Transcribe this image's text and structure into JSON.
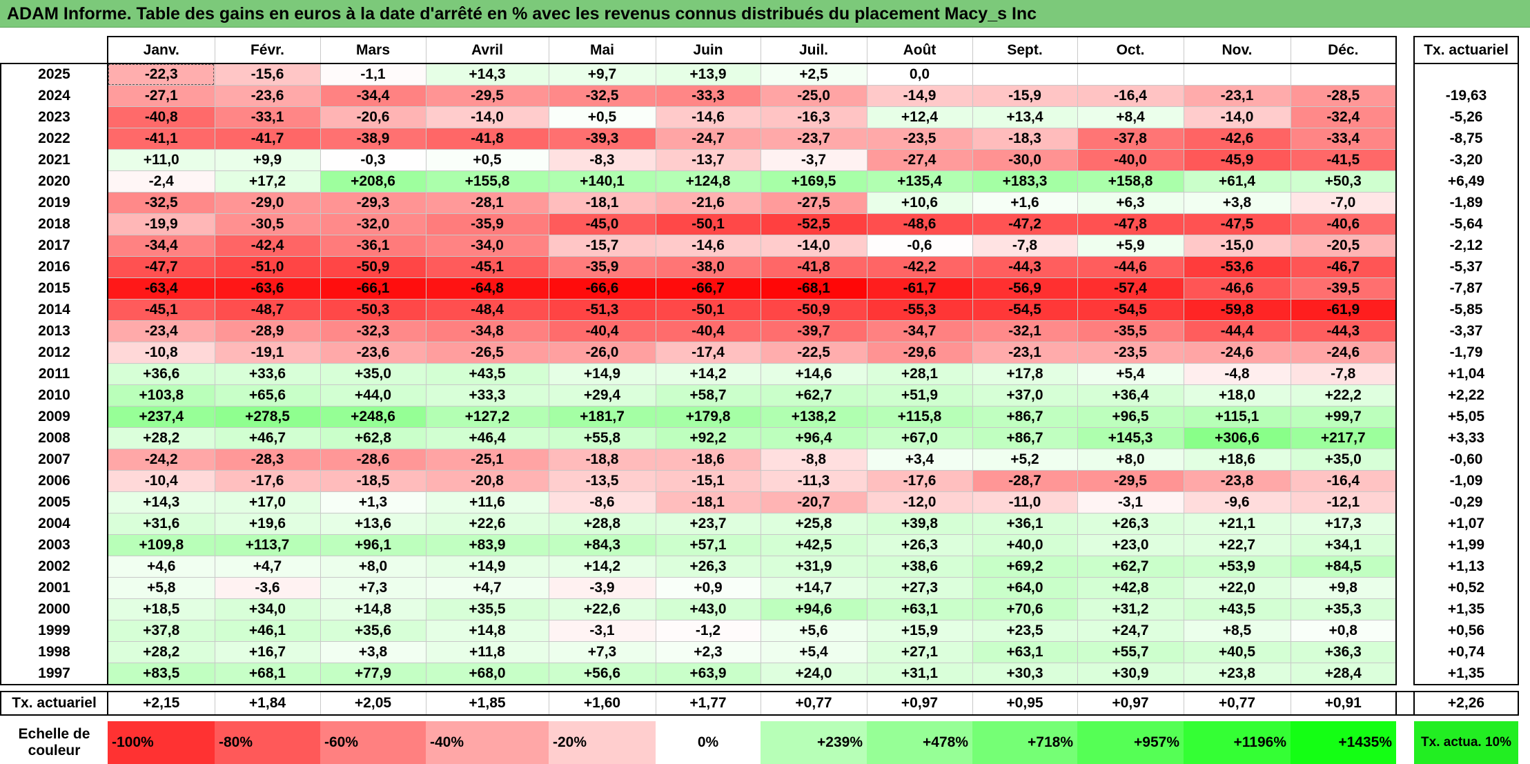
{
  "title": "ADAM Informe. Table des gains en euros à la date d'arrêté en % avec les revenus connus distribués du placement Macy_s Inc",
  "months": [
    "Janv.",
    "Févr.",
    "Mars",
    "Avril",
    "Mai",
    "Juin",
    "Juil.",
    "Août",
    "Sept.",
    "Oct.",
    "Nov.",
    "Déc."
  ],
  "annual_header": "Tx. actuariel",
  "rows": [
    {
      "year": "2025",
      "cells": [
        "-22,3",
        "-15,6",
        "-1,1",
        "+14,3",
        "+9,7",
        "+13,9",
        "+2,5",
        "0,0",
        "",
        "",
        "",
        ""
      ],
      "annual": ""
    },
    {
      "year": "2024",
      "cells": [
        "-27,1",
        "-23,6",
        "-34,4",
        "-29,5",
        "-32,5",
        "-33,3",
        "-25,0",
        "-14,9",
        "-15,9",
        "-16,4",
        "-23,1",
        "-28,5"
      ],
      "annual": "-19,63"
    },
    {
      "year": "2023",
      "cells": [
        "-40,8",
        "-33,1",
        "-20,6",
        "-14,0",
        "+0,5",
        "-14,6",
        "-16,3",
        "+12,4",
        "+13,4",
        "+8,4",
        "-14,0",
        "-32,4"
      ],
      "annual": "-5,26"
    },
    {
      "year": "2022",
      "cells": [
        "-41,1",
        "-41,7",
        "-38,9",
        "-41,8",
        "-39,3",
        "-24,7",
        "-23,7",
        "-23,5",
        "-18,3",
        "-37,8",
        "-42,6",
        "-33,4"
      ],
      "annual": "-8,75"
    },
    {
      "year": "2021",
      "cells": [
        "+11,0",
        "+9,9",
        "-0,3",
        "+0,5",
        "-8,3",
        "-13,7",
        "-3,7",
        "-27,4",
        "-30,0",
        "-40,0",
        "-45,9",
        "-41,5"
      ],
      "annual": "-3,20"
    },
    {
      "year": "2020",
      "cells": [
        "-2,4",
        "+17,2",
        "+208,6",
        "+155,8",
        "+140,1",
        "+124,8",
        "+169,5",
        "+135,4",
        "+183,3",
        "+158,8",
        "+61,4",
        "+50,3"
      ],
      "annual": "+6,49"
    },
    {
      "year": "2019",
      "cells": [
        "-32,5",
        "-29,0",
        "-29,3",
        "-28,1",
        "-18,1",
        "-21,6",
        "-27,5",
        "+10,6",
        "+1,6",
        "+6,3",
        "+3,8",
        "-7,0"
      ],
      "annual": "-1,89"
    },
    {
      "year": "2018",
      "cells": [
        "-19,9",
        "-30,5",
        "-32,0",
        "-35,9",
        "-45,0",
        "-50,1",
        "-52,5",
        "-48,6",
        "-47,2",
        "-47,8",
        "-47,5",
        "-40,6"
      ],
      "annual": "-5,64"
    },
    {
      "year": "2017",
      "cells": [
        "-34,4",
        "-42,4",
        "-36,1",
        "-34,0",
        "-15,7",
        "-14,6",
        "-14,0",
        "-0,6",
        "-7,8",
        "+5,9",
        "-15,0",
        "-20,5"
      ],
      "annual": "-2,12"
    },
    {
      "year": "2016",
      "cells": [
        "-47,7",
        "-51,0",
        "-50,9",
        "-45,1",
        "-35,9",
        "-38,0",
        "-41,8",
        "-42,2",
        "-44,3",
        "-44,6",
        "-53,6",
        "-46,7"
      ],
      "annual": "-5,37"
    },
    {
      "year": "2015",
      "cells": [
        "-63,4",
        "-63,6",
        "-66,1",
        "-64,8",
        "-66,6",
        "-66,7",
        "-68,1",
        "-61,7",
        "-56,9",
        "-57,4",
        "-46,6",
        "-39,5"
      ],
      "annual": "-7,87"
    },
    {
      "year": "2014",
      "cells": [
        "-45,1",
        "-48,7",
        "-50,3",
        "-48,4",
        "-51,3",
        "-50,1",
        "-50,9",
        "-55,3",
        "-54,5",
        "-54,5",
        "-59,8",
        "-61,9"
      ],
      "annual": "-5,85"
    },
    {
      "year": "2013",
      "cells": [
        "-23,4",
        "-28,9",
        "-32,3",
        "-34,8",
        "-40,4",
        "-40,4",
        "-39,7",
        "-34,7",
        "-32,1",
        "-35,5",
        "-44,4",
        "-44,3"
      ],
      "annual": "-3,37"
    },
    {
      "year": "2012",
      "cells": [
        "-10,8",
        "-19,1",
        "-23,6",
        "-26,5",
        "-26,0",
        "-17,4",
        "-22,5",
        "-29,6",
        "-23,1",
        "-23,5",
        "-24,6",
        "-24,6"
      ],
      "annual": "-1,79"
    },
    {
      "year": "2011",
      "cells": [
        "+36,6",
        "+33,6",
        "+35,0",
        "+43,5",
        "+14,9",
        "+14,2",
        "+14,6",
        "+28,1",
        "+17,8",
        "+5,4",
        "-4,8",
        "-7,8"
      ],
      "annual": "+1,04"
    },
    {
      "year": "2010",
      "cells": [
        "+103,8",
        "+65,6",
        "+44,0",
        "+33,3",
        "+29,4",
        "+58,7",
        "+62,7",
        "+51,9",
        "+37,0",
        "+36,4",
        "+18,0",
        "+22,2"
      ],
      "annual": "+2,22"
    },
    {
      "year": "2009",
      "cells": [
        "+237,4",
        "+278,5",
        "+248,6",
        "+127,2",
        "+181,7",
        "+179,8",
        "+138,2",
        "+115,8",
        "+86,7",
        "+96,5",
        "+115,1",
        "+99,7"
      ],
      "annual": "+5,05"
    },
    {
      "year": "2008",
      "cells": [
        "+28,2",
        "+46,7",
        "+62,8",
        "+46,4",
        "+55,8",
        "+92,2",
        "+96,4",
        "+67,0",
        "+86,7",
        "+145,3",
        "+306,6",
        "+217,7"
      ],
      "annual": "+3,33"
    },
    {
      "year": "2007",
      "cells": [
        "-24,2",
        "-28,3",
        "-28,6",
        "-25,1",
        "-18,8",
        "-18,6",
        "-8,8",
        "+3,4",
        "+5,2",
        "+8,0",
        "+18,6",
        "+35,0"
      ],
      "annual": "-0,60"
    },
    {
      "year": "2006",
      "cells": [
        "-10,4",
        "-17,6",
        "-18,5",
        "-20,8",
        "-13,5",
        "-15,1",
        "-11,3",
        "-17,6",
        "-28,7",
        "-29,5",
        "-23,8",
        "-16,4"
      ],
      "annual": "-1,09"
    },
    {
      "year": "2005",
      "cells": [
        "+14,3",
        "+17,0",
        "+1,3",
        "+11,6",
        "-8,6",
        "-18,1",
        "-20,7",
        "-12,0",
        "-11,0",
        "-3,1",
        "-9,6",
        "-12,1"
      ],
      "annual": "-0,29"
    },
    {
      "year": "2004",
      "cells": [
        "+31,6",
        "+19,6",
        "+13,6",
        "+22,6",
        "+28,8",
        "+23,7",
        "+25,8",
        "+39,8",
        "+36,1",
        "+26,3",
        "+21,1",
        "+17,3"
      ],
      "annual": "+1,07"
    },
    {
      "year": "2003",
      "cells": [
        "+109,8",
        "+113,7",
        "+96,1",
        "+83,9",
        "+84,3",
        "+57,1",
        "+42,5",
        "+26,3",
        "+40,0",
        "+23,0",
        "+22,7",
        "+34,1"
      ],
      "annual": "+1,99"
    },
    {
      "year": "2002",
      "cells": [
        "+4,6",
        "+4,7",
        "+8,0",
        "+14,9",
        "+14,2",
        "+26,3",
        "+31,9",
        "+38,6",
        "+69,2",
        "+62,7",
        "+53,9",
        "+84,5"
      ],
      "annual": "+1,13"
    },
    {
      "year": "2001",
      "cells": [
        "+5,8",
        "-3,6",
        "+7,3",
        "+4,7",
        "-3,9",
        "+0,9",
        "+14,7",
        "+27,3",
        "+64,0",
        "+42,8",
        "+22,0",
        "+9,8"
      ],
      "annual": "+0,52"
    },
    {
      "year": "2000",
      "cells": [
        "+18,5",
        "+34,0",
        "+14,8",
        "+35,5",
        "+22,6",
        "+43,0",
        "+94,6",
        "+63,1",
        "+70,6",
        "+31,2",
        "+43,5",
        "+35,3"
      ],
      "annual": "+1,35"
    },
    {
      "year": "1999",
      "cells": [
        "+37,8",
        "+46,1",
        "+35,6",
        "+14,8",
        "-3,1",
        "-1,2",
        "+5,6",
        "+15,9",
        "+23,5",
        "+24,7",
        "+8,5",
        "+0,8"
      ],
      "annual": "+0,56"
    },
    {
      "year": "1998",
      "cells": [
        "+28,2",
        "+16,7",
        "+3,8",
        "+11,8",
        "+7,3",
        "+2,3",
        "+5,4",
        "+27,1",
        "+63,1",
        "+55,7",
        "+40,5",
        "+36,3"
      ],
      "annual": "+0,74"
    },
    {
      "year": "1997",
      "cells": [
        "+83,5",
        "+68,1",
        "+77,9",
        "+68,0",
        "+56,6",
        "+63,9",
        "+24,0",
        "+31,1",
        "+30,3",
        "+30,9",
        "+23,8",
        "+28,4"
      ],
      "annual": "+1,35"
    }
  ],
  "footer": {
    "label": "Tx. actuariel",
    "cells": [
      "+2,15",
      "+1,84",
      "+2,05",
      "+1,85",
      "+1,60",
      "+1,77",
      "+0,77",
      "+0,97",
      "+0,95",
      "+0,97",
      "+0,77",
      "+0,91"
    ],
    "annual": "+2,26"
  },
  "scale": {
    "label": "Echelle de couleur",
    "cells": [
      "-100%",
      "-80%",
      "-60%",
      "-40%",
      "-20%",
      "0%",
      "+239%",
      "+478%",
      "+718%",
      "+957%",
      "+1196%",
      "+1435%"
    ],
    "annual": "Tx. actua. 10%"
  },
  "colors": {
    "negative_max": "#ff0000",
    "positive_max": "#00ff00",
    "title_bar": "#7cc97a",
    "neutral": "#ffffff"
  }
}
